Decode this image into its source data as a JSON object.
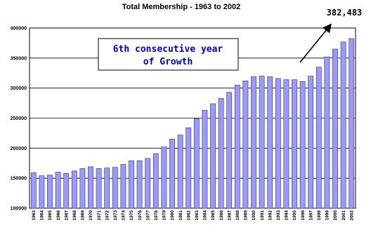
{
  "chart_data": {
    "type": "bar",
    "title": "Total Membership - 1963 to 2002",
    "xlabel": "",
    "ylabel": "",
    "ylim": [
      100000,
      400000
    ],
    "yticks": [
      100000,
      150000,
      200000,
      250000,
      300000,
      350000,
      400000
    ],
    "ytick_labels": [
      "100000",
      "150000",
      "200000",
      "250000",
      "300000",
      "350000",
      "400000"
    ],
    "grid": true,
    "legend": "none",
    "bar_color": "#9999ff",
    "categories": [
      "1963",
      "1964",
      "1965",
      "1966",
      "1967",
      "1968",
      "1969",
      "1970",
      "1971",
      "1972",
      "1973",
      "1974",
      "1975",
      "1976",
      "1977",
      "1978",
      "1979",
      "1980",
      "1981",
      "1982",
      "1983",
      "1984",
      "1985",
      "1986",
      "1987",
      "1988",
      "1989",
      "1990",
      "1991",
      "1992",
      "1993",
      "1994",
      "1995",
      "1996",
      "1997",
      "1998",
      "1999",
      "2000",
      "2001",
      "2002"
    ],
    "values": [
      159000,
      154000,
      155000,
      160000,
      158000,
      162000,
      166000,
      169000,
      166000,
      167000,
      168000,
      173000,
      179000,
      179000,
      183000,
      191000,
      202000,
      215000,
      222000,
      234000,
      249000,
      263000,
      274000,
      283000,
      293000,
      305000,
      312000,
      319000,
      320000,
      319000,
      316000,
      314000,
      314000,
      311000,
      320000,
      335000,
      352000,
      365000,
      377000,
      382483
    ],
    "annotations": {
      "callout_line1": "6th consecutive year",
      "callout_line2": "of Growth",
      "peak_label": "382,483"
    }
  }
}
